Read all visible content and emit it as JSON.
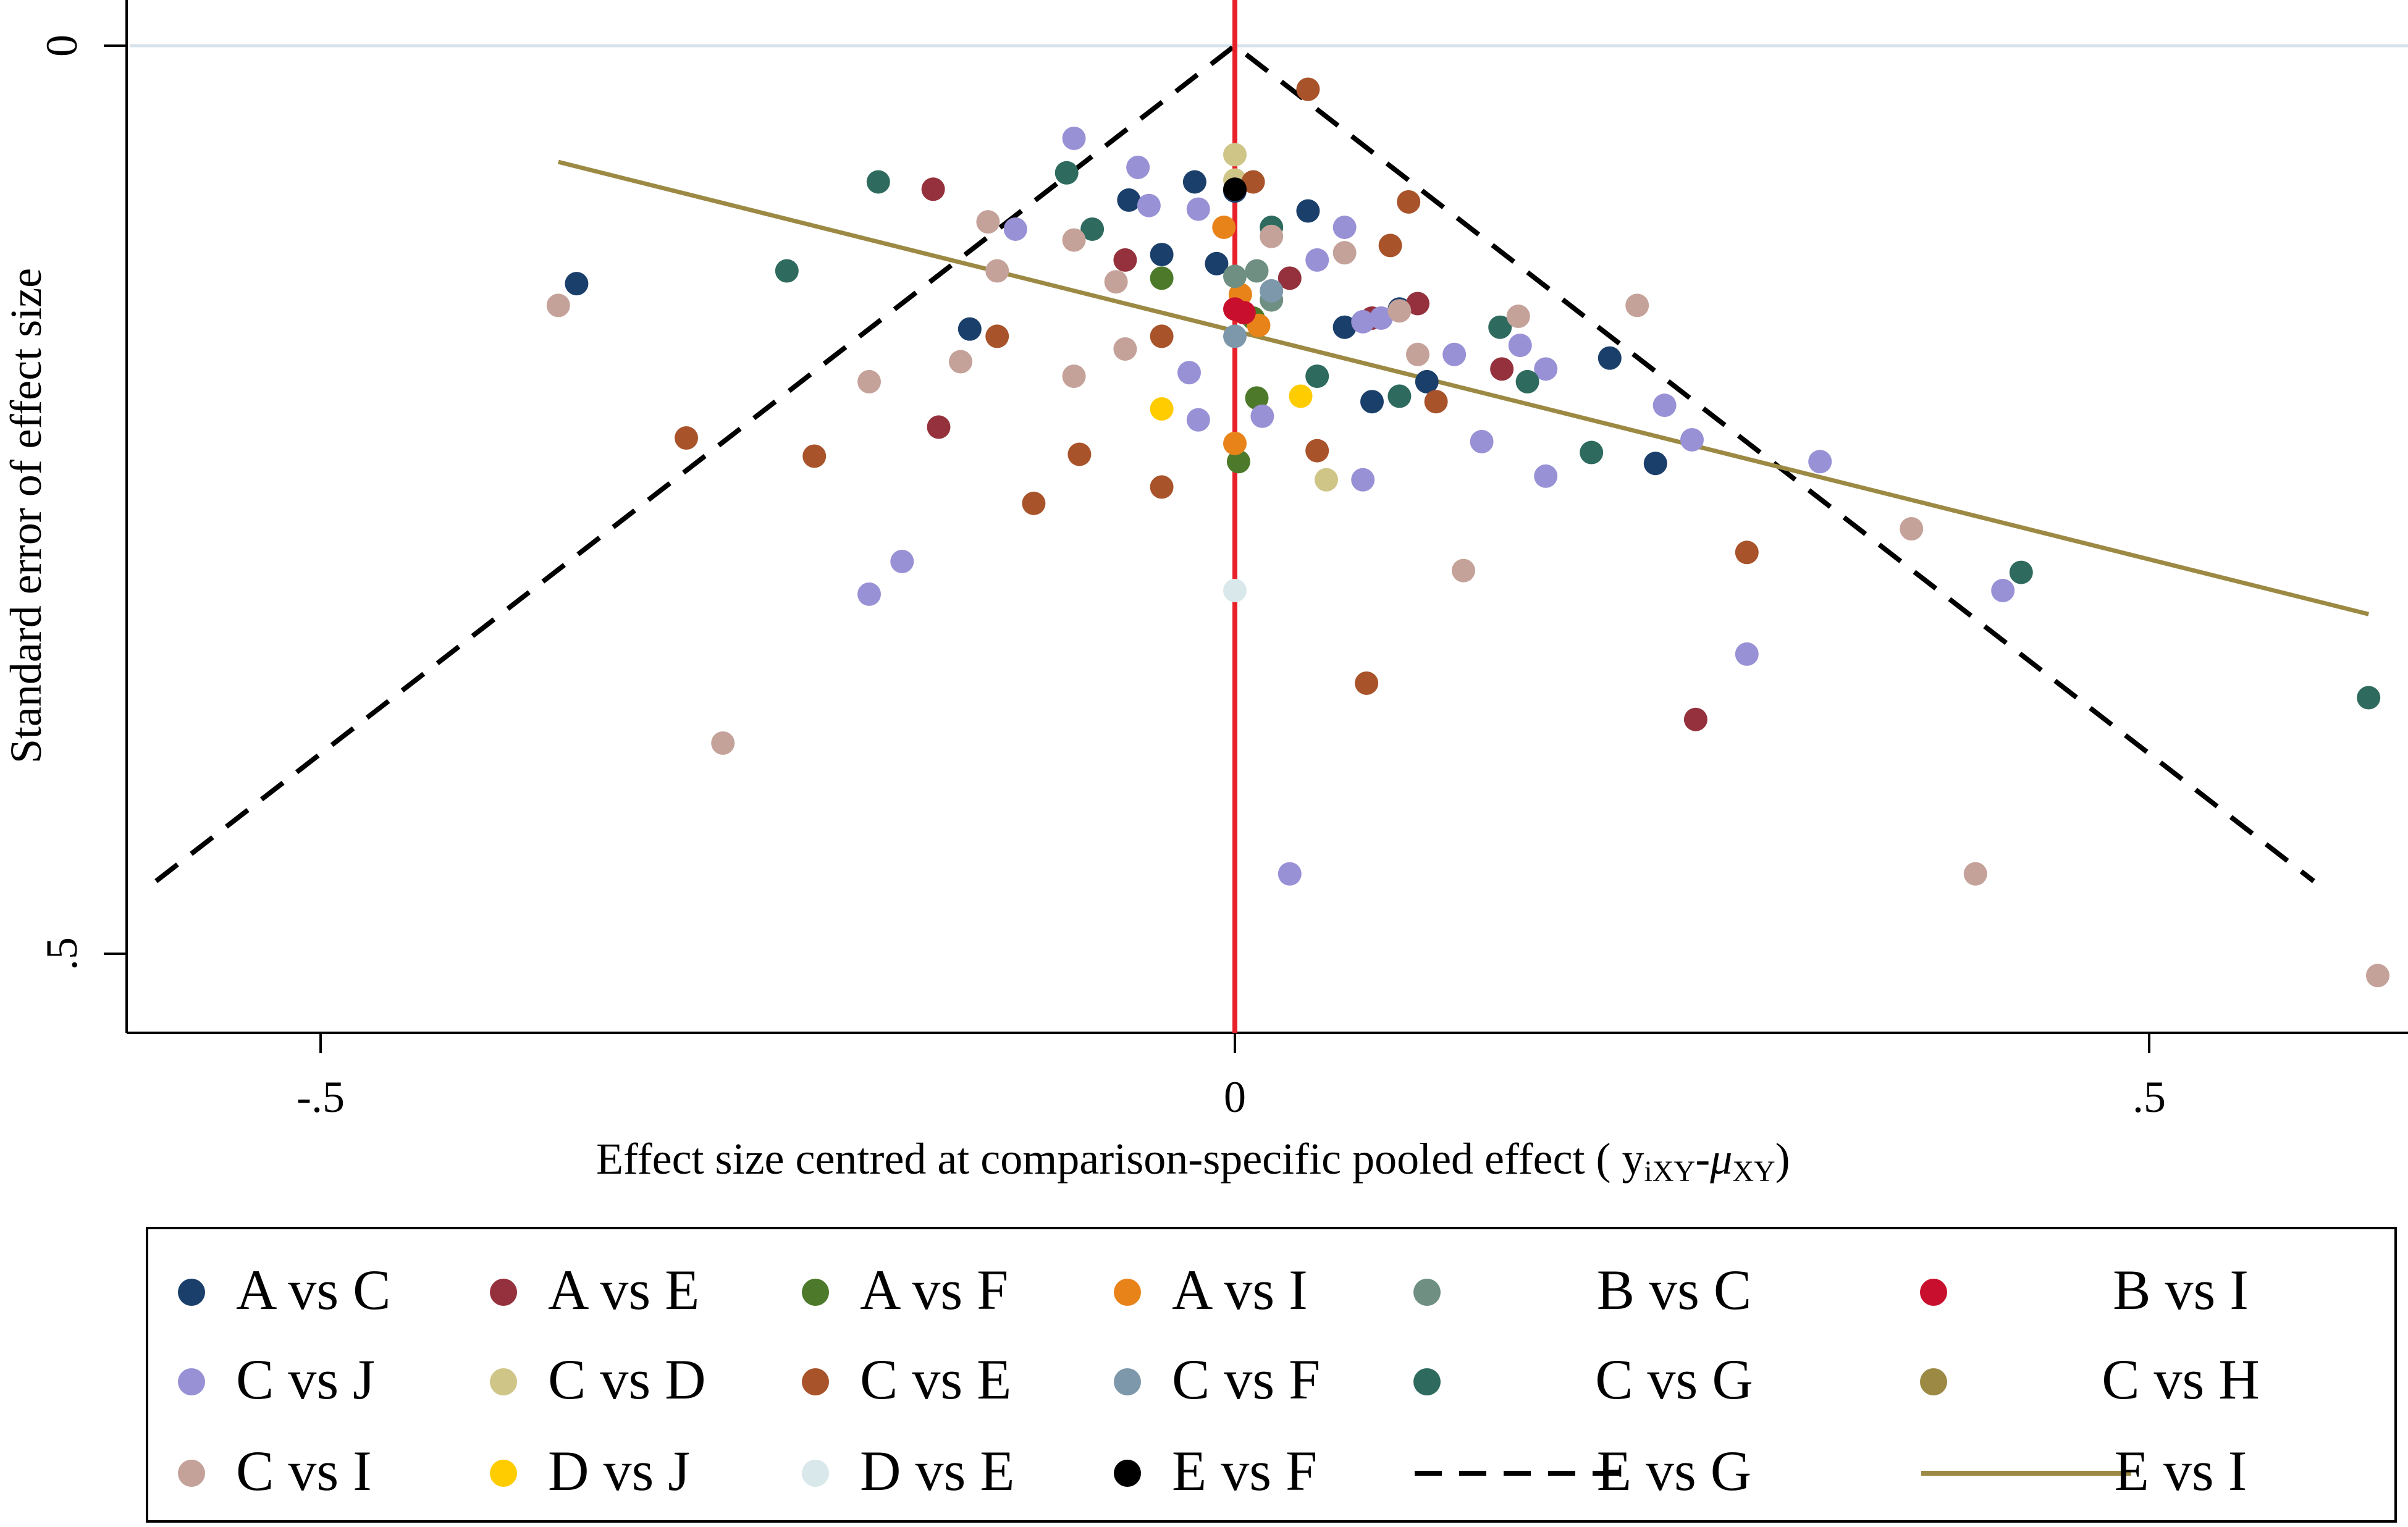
{
  "chart_data": {
    "type": "scatter",
    "title": "",
    "xlabel": "Effect size centred at comparison-specific pooled effect ( y",
    "xlabel_sub1": "iXY",
    "xlabel_dash": "-",
    "xlabel_mu": "μ",
    "xlabel_sub2": "XY",
    "xlabel_end": ")",
    "ylabel": "Standard error of effect size",
    "xlim": [
      -0.62,
      0.64
    ],
    "ylim": [
      0,
      0.52
    ],
    "y_reversed": true,
    "x_ticks": [
      {
        "value": -0.5,
        "label": "-.5"
      },
      {
        "value": 0,
        "label": "0"
      },
      {
        "value": 0.5,
        "label": ".5"
      }
    ],
    "y_ticks": [
      {
        "value": 0,
        "label": "0"
      },
      {
        "value": 0.5,
        "label": ".5"
      }
    ],
    "null_line_x": 0,
    "funnel": {
      "name": "E vs G",
      "apex": [
        0,
        0
      ],
      "left_end": [
        -0.59,
        0.46
      ],
      "right_end": [
        0.59,
        0.46
      ]
    },
    "regression_line": {
      "name": "E vs I",
      "x": [
        -0.37,
        0.62
      ],
      "y": [
        0.064,
        0.313
      ]
    },
    "series": [
      {
        "name": "A vs C",
        "color": "#1b3f6b",
        "points": [
          [
            -0.36,
            0.131
          ],
          [
            -0.145,
            0.156
          ],
          [
            -0.022,
            0.075
          ],
          [
            -0.058,
            0.085
          ],
          [
            -0.04,
            0.115
          ],
          [
            -0.01,
            0.12
          ],
          [
            0.04,
            0.091
          ],
          [
            0.06,
            0.155
          ],
          [
            0.075,
            0.196
          ],
          [
            0.09,
            0.145
          ],
          [
            0.105,
            0.185
          ],
          [
            0.205,
            0.172
          ],
          [
            0.23,
            0.23
          ],
          [
            0.0,
            0.08
          ]
        ]
      },
      {
        "name": "A vs E",
        "color": "#94313c",
        "points": [
          [
            -0.165,
            0.079
          ],
          [
            -0.162,
            0.21
          ],
          [
            -0.06,
            0.118
          ],
          [
            0.075,
            0.15
          ],
          [
            0.1,
            0.142
          ],
          [
            0.146,
            0.178
          ],
          [
            0.252,
            0.371
          ],
          [
            0.03,
            0.128
          ]
        ]
      },
      {
        "name": "A vs F",
        "color": "#4d7a2a",
        "points": [
          [
            0.012,
            0.194
          ],
          [
            0.002,
            0.229
          ],
          [
            -0.04,
            0.128
          ],
          [
            0.01,
            0.15
          ]
        ]
      },
      {
        "name": "A vs I",
        "color": "#e8831a",
        "points": [
          [
            -0.006,
            0.1
          ],
          [
            0.013,
            0.154
          ],
          [
            0.0,
            0.219
          ],
          [
            0.003,
            0.137
          ]
        ]
      },
      {
        "name": "B vs C",
        "color": "#6e8f82",
        "points": [
          [
            0.0,
            0.127
          ],
          [
            0.012,
            0.124
          ],
          [
            0.02,
            0.14
          ]
        ]
      },
      {
        "name": "B vs I",
        "color": "#c8102e",
        "points": [
          [
            0.0,
            0.145
          ],
          [
            0.005,
            0.147
          ]
        ]
      },
      {
        "name": "C vs J",
        "color": "#9891d6",
        "points": [
          [
            -0.088,
            0.051
          ],
          [
            -0.053,
            0.067
          ],
          [
            -0.047,
            0.088
          ],
          [
            -0.12,
            0.101
          ],
          [
            -0.02,
            0.09
          ],
          [
            -0.025,
            0.18
          ],
          [
            -0.02,
            0.206
          ],
          [
            0.015,
            0.204
          ],
          [
            0.03,
            0.456
          ],
          [
            0.045,
            0.118
          ],
          [
            0.07,
            0.152
          ],
          [
            0.07,
            0.239
          ],
          [
            0.135,
            0.218
          ],
          [
            0.156,
            0.165
          ],
          [
            0.17,
            0.178
          ],
          [
            0.17,
            0.237
          ],
          [
            0.235,
            0.198
          ],
          [
            0.25,
            0.217
          ],
          [
            0.32,
            0.229
          ],
          [
            0.28,
            0.335
          ],
          [
            0.42,
            0.3
          ],
          [
            -0.182,
            0.284
          ],
          [
            -0.2,
            0.302
          ],
          [
            0.06,
            0.1
          ],
          [
            0.08,
            0.15
          ],
          [
            0.12,
            0.17
          ]
        ]
      },
      {
        "name": "C vs D",
        "color": "#cfc587",
        "points": [
          [
            0.0,
            0.06
          ],
          [
            0.05,
            0.239
          ],
          [
            0.0,
            0.074
          ]
        ]
      },
      {
        "name": "C vs E",
        "color": "#a8532a",
        "points": [
          [
            0.04,
            0.024
          ],
          [
            0.095,
            0.086
          ],
          [
            0.085,
            0.11
          ],
          [
            -0.13,
            0.16
          ],
          [
            -0.3,
            0.216
          ],
          [
            -0.23,
            0.226
          ],
          [
            -0.085,
            0.225
          ],
          [
            -0.11,
            0.252
          ],
          [
            -0.04,
            0.243
          ],
          [
            0.045,
            0.223
          ],
          [
            0.11,
            0.196
          ],
          [
            0.28,
            0.279
          ],
          [
            0.072,
            0.351
          ],
          [
            -0.04,
            0.16
          ],
          [
            0.01,
            0.075
          ]
        ]
      },
      {
        "name": "C vs F",
        "color": "#7d97ab",
        "points": [
          [
            0.0,
            0.16
          ],
          [
            0.02,
            0.135
          ]
        ]
      },
      {
        "name": "C vs G",
        "color": "#2e6b5e",
        "points": [
          [
            -0.195,
            0.075
          ],
          [
            -0.245,
            0.124
          ],
          [
            -0.092,
            0.07
          ],
          [
            -0.078,
            0.101
          ],
          [
            0.145,
            0.155
          ],
          [
            0.09,
            0.193
          ],
          [
            0.16,
            0.185
          ],
          [
            0.195,
            0.224
          ],
          [
            0.045,
            0.182
          ],
          [
            0.43,
            0.29
          ],
          [
            0.62,
            0.359
          ],
          [
            0.02,
            0.1
          ]
        ]
      },
      {
        "name": "C vs H",
        "color": "#9c8a44",
        "points": []
      },
      {
        "name": "C vs I",
        "color": "#c4a29a",
        "points": [
          [
            -0.37,
            0.143
          ],
          [
            -0.135,
            0.097
          ],
          [
            -0.13,
            0.124
          ],
          [
            -0.2,
            0.185
          ],
          [
            -0.15,
            0.174
          ],
          [
            -0.088,
            0.107
          ],
          [
            -0.088,
            0.182
          ],
          [
            -0.065,
            0.13
          ],
          [
            -0.06,
            0.167
          ],
          [
            0.06,
            0.114
          ],
          [
            0.09,
            0.146
          ],
          [
            0.125,
            0.289
          ],
          [
            0.155,
            0.149
          ],
          [
            0.22,
            0.143
          ],
          [
            0.37,
            0.266
          ],
          [
            0.405,
            0.456
          ],
          [
            0.625,
            0.512
          ],
          [
            -0.28,
            0.384
          ],
          [
            0.1,
            0.17
          ],
          [
            0.02,
            0.105
          ]
        ]
      },
      {
        "name": "D vs J",
        "color": "#ffcc00",
        "points": [
          [
            -0.04,
            0.2
          ],
          [
            0.036,
            0.193
          ]
        ]
      },
      {
        "name": "D vs E",
        "color": "#d9e8ea",
        "points": [
          [
            0.0,
            0.3
          ]
        ]
      },
      {
        "name": "E vs F",
        "color": "#000000",
        "points": [
          [
            0.0,
            0.079
          ]
        ]
      }
    ]
  },
  "legend": {
    "items": [
      {
        "label": "A vs C",
        "color": "#1b3f6b",
        "kind": "dot"
      },
      {
        "label": "A vs E",
        "color": "#94313c",
        "kind": "dot"
      },
      {
        "label": "A vs F",
        "color": "#4d7a2a",
        "kind": "dot"
      },
      {
        "label": "A vs I",
        "color": "#e8831a",
        "kind": "dot"
      },
      {
        "label": "B vs C",
        "color": "#6e8f82",
        "kind": "dot"
      },
      {
        "label": "B vs I",
        "color": "#c8102e",
        "kind": "dot"
      },
      {
        "label": "C vs J",
        "color": "#9891d6",
        "kind": "dot"
      },
      {
        "label": "C vs D",
        "color": "#cfc587",
        "kind": "dot"
      },
      {
        "label": "C vs E",
        "color": "#a8532a",
        "kind": "dot"
      },
      {
        "label": "C vs F",
        "color": "#7d97ab",
        "kind": "dot"
      },
      {
        "label": "C vs G",
        "color": "#2e6b5e",
        "kind": "dot"
      },
      {
        "label": "C vs H",
        "color": "#9c8a44",
        "kind": "dot"
      },
      {
        "label": "C vs I",
        "color": "#c4a29a",
        "kind": "dot"
      },
      {
        "label": "D vs J",
        "color": "#ffcc00",
        "kind": "dot"
      },
      {
        "label": "D vs E",
        "color": "#d9e8ea",
        "kind": "dot"
      },
      {
        "label": "E vs F",
        "color": "#000000",
        "kind": "dot"
      },
      {
        "label": "E vs G",
        "color": "#000000",
        "kind": "dash"
      },
      {
        "label": "E vs I",
        "color": "#9c8a44",
        "kind": "line"
      }
    ]
  },
  "colors": {
    "null_line": "#e8202a",
    "funnel": "#000000",
    "regression": "#9c8a44",
    "gridline": "#d7e3ea"
  }
}
